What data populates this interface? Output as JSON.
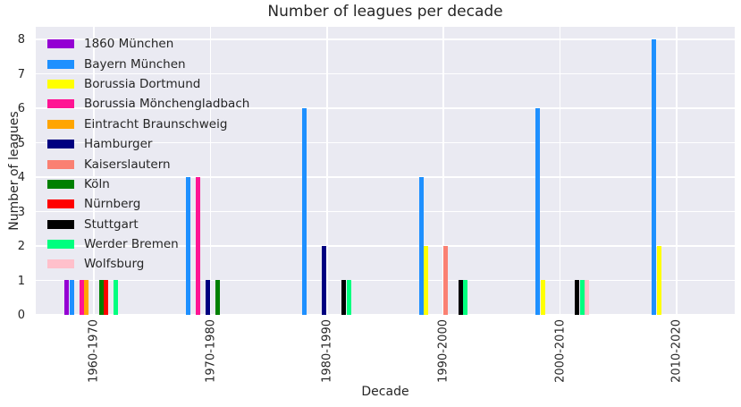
{
  "chart_data": {
    "type": "bar",
    "title": "Number of leagues per decade",
    "xlabel": "Decade",
    "ylabel": "Number of leagues",
    "categories": [
      "1960-1970",
      "1970-1980",
      "1980-1990",
      "1990-2000",
      "2000-2010",
      "2010-2020"
    ],
    "y_ticks": [
      0,
      1,
      2,
      3,
      4,
      5,
      6,
      7,
      8
    ],
    "ylim": [
      0,
      8.4
    ],
    "grid": true,
    "legend_position": "upper left",
    "plot_background": "#EAEAF2",
    "gridline_color": "#ffffff",
    "text_color": "#262626",
    "series": [
      {
        "name": "1860 München",
        "color": "#9400D3",
        "values": [
          1,
          0,
          0,
          0,
          0,
          0
        ]
      },
      {
        "name": "Bayern München",
        "color": "#1E90FF",
        "values": [
          1,
          4,
          6,
          4,
          6,
          8
        ]
      },
      {
        "name": "Borussia Dortmund",
        "color": "#FFFF00",
        "values": [
          0,
          0,
          0,
          2,
          1,
          2
        ]
      },
      {
        "name": "Borussia Mönchengladbach",
        "color": "#FF1493",
        "values": [
          1,
          4,
          0,
          0,
          0,
          0
        ]
      },
      {
        "name": "Eintracht Braunschweig",
        "color": "#FFA500",
        "values": [
          1,
          0,
          0,
          0,
          0,
          0
        ]
      },
      {
        "name": "Hamburger",
        "color": "#000080",
        "values": [
          0,
          1,
          2,
          0,
          0,
          0
        ]
      },
      {
        "name": "Kaiserslautern",
        "color": "#FA8072",
        "values": [
          0,
          0,
          0,
          2,
          0,
          0
        ]
      },
      {
        "name": "Köln",
        "color": "#008000",
        "values": [
          1,
          1,
          0,
          0,
          0,
          0
        ]
      },
      {
        "name": "Nürnberg",
        "color": "#FF0000",
        "values": [
          1,
          0,
          0,
          0,
          0,
          0
        ]
      },
      {
        "name": "Stuttgart",
        "color": "#000000",
        "values": [
          0,
          0,
          1,
          1,
          1,
          0
        ]
      },
      {
        "name": "Werder Bremen",
        "color": "#00FF7F",
        "values": [
          1,
          0,
          1,
          1,
          1,
          0
        ]
      },
      {
        "name": "Wolfsburg",
        "color": "#FFC0CB",
        "values": [
          0,
          0,
          0,
          0,
          1,
          0
        ]
      }
    ]
  }
}
